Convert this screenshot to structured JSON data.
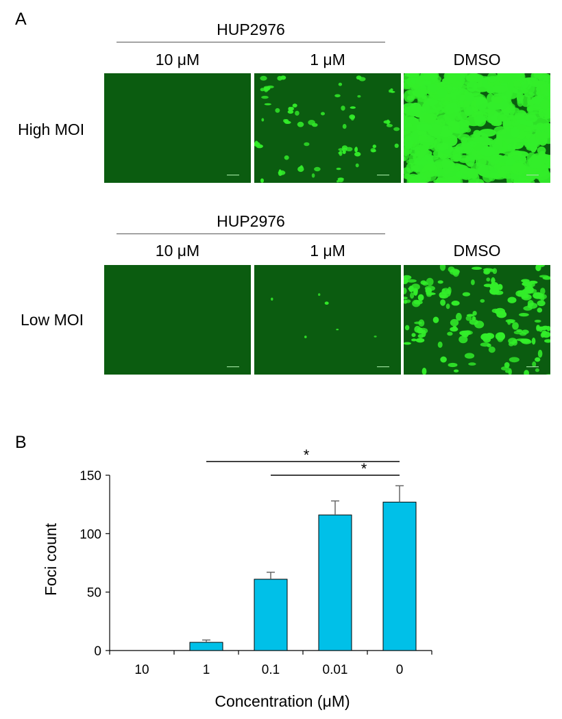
{
  "panel_a": {
    "letter": "A",
    "rows": [
      {
        "treatment_label": "HUP2976",
        "row_label": "High MOI",
        "columns": [
          {
            "label": "10 μM",
            "intensity": "none"
          },
          {
            "label": "1 μM",
            "intensity": "sparse"
          },
          {
            "label": "DMSO",
            "intensity": "dense"
          }
        ]
      },
      {
        "treatment_label": "HUP2976",
        "row_label": "Low MOI",
        "columns": [
          {
            "label": "10 μM",
            "intensity": "none"
          },
          {
            "label": "1 μM",
            "intensity": "trace"
          },
          {
            "label": "DMSO",
            "intensity": "moderate"
          }
        ]
      }
    ],
    "colors": {
      "background": "#0b5c10",
      "fluorescence": "#33ee2a"
    }
  },
  "panel_b": {
    "letter": "B"
  },
  "chart_data": {
    "type": "bar",
    "categories": [
      "10",
      "1",
      "0.1",
      "0.01",
      "0"
    ],
    "values": [
      0,
      7,
      61,
      116,
      127
    ],
    "errors": [
      0,
      2,
      6,
      12,
      14
    ],
    "xlabel": "Concentration (μM)",
    "ylabel": "Foci count",
    "ylim": [
      0,
      150
    ],
    "yticks": [
      0,
      50,
      100,
      150
    ],
    "bar_color": "#00c0e8",
    "significance": [
      {
        "from": "1",
        "to": "0",
        "label": "*"
      },
      {
        "from": "0.1",
        "to": "0",
        "label": "*"
      }
    ]
  }
}
